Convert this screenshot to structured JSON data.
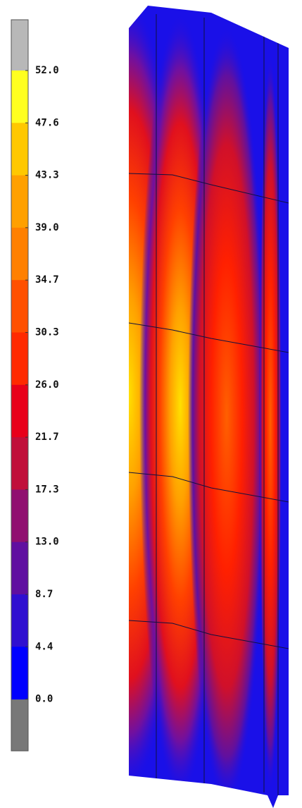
{
  "colorbar": {
    "labels": [
      "52.0",
      "47.6",
      "43.3",
      "39.0",
      "34.7",
      "30.3",
      "26.0",
      "21.7",
      "17.3",
      "13.0",
      "8.7",
      "4.4",
      "0.0"
    ]
  }
}
